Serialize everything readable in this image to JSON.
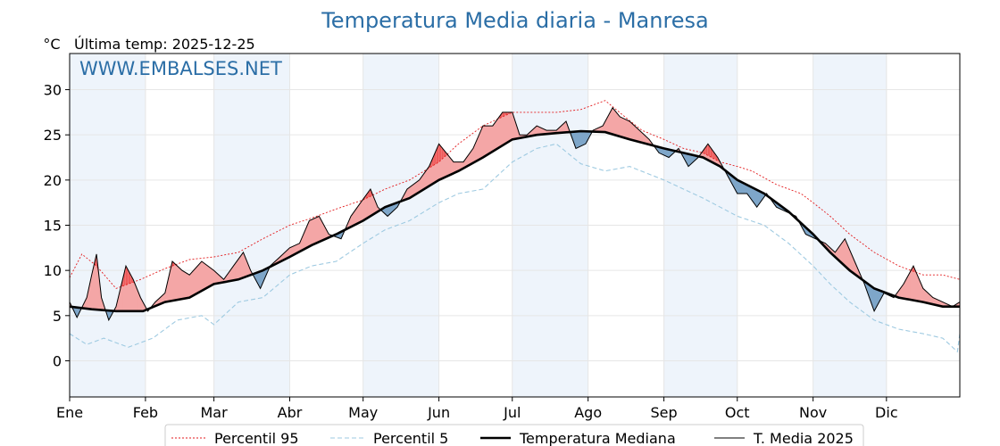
{
  "chart_data": {
    "type": "line",
    "title": "Temperatura Media diaria - Manresa",
    "ylabel": "°C",
    "subtitle": "Última temp: 2025-12-25",
    "watermark": "WWW.EMBALSES.NET",
    "ylim": [
      -4,
      34
    ],
    "xlim_day": [
      1,
      365
    ],
    "grid": true,
    "legend_position": "bottom-center",
    "y_ticks": [
      0,
      5,
      10,
      15,
      20,
      25,
      30
    ],
    "month_ticks": [
      {
        "label": "Ene",
        "day": 1
      },
      {
        "label": "Feb",
        "day": 32
      },
      {
        "label": "Mar",
        "day": 60
      },
      {
        "label": "Abr",
        "day": 91
      },
      {
        "label": "May",
        "day": 121
      },
      {
        "label": "Jun",
        "day": 152
      },
      {
        "label": "Jul",
        "day": 182
      },
      {
        "label": "Ago",
        "day": 213
      },
      {
        "label": "Sep",
        "day": 244
      },
      {
        "label": "Oct",
        "day": 274
      },
      {
        "label": "Nov",
        "day": 305
      },
      {
        "label": "Dic",
        "day": 335
      }
    ],
    "colors": {
      "p95": "#e31a1c",
      "p5": "#9ecae1",
      "median": "#000000",
      "current": "#000000",
      "above": "#f4a6a6",
      "above_extreme": "#ef5b5b",
      "below": "#7ea6c9",
      "below_extreme": "#1f5e99",
      "month_band": "#eef4fb",
      "title": "#2b6ea6"
    },
    "series": [
      {
        "name": "Percentil 95",
        "style": "dotted-red",
        "points": [
          [
            1,
            9.2
          ],
          [
            6,
            11.8
          ],
          [
            12,
            10.5
          ],
          [
            20,
            8.0
          ],
          [
            30,
            9.0
          ],
          [
            40,
            10.2
          ],
          [
            50,
            11.2
          ],
          [
            60,
            11.5
          ],
          [
            70,
            12.0
          ],
          [
            80,
            13.5
          ],
          [
            91,
            15.0
          ],
          [
            100,
            15.8
          ],
          [
            110,
            16.8
          ],
          [
            121,
            17.8
          ],
          [
            130,
            19.0
          ],
          [
            140,
            20.0
          ],
          [
            152,
            22.0
          ],
          [
            160,
            24.0
          ],
          [
            170,
            26.0
          ],
          [
            182,
            27.5
          ],
          [
            192,
            27.5
          ],
          [
            200,
            27.5
          ],
          [
            210,
            27.8
          ],
          [
            220,
            28.8
          ],
          [
            228,
            27.0
          ],
          [
            235,
            25.5
          ],
          [
            244,
            24.5
          ],
          [
            252,
            23.5
          ],
          [
            260,
            23.0
          ],
          [
            267,
            22.0
          ],
          [
            274,
            21.5
          ],
          [
            280,
            21.0
          ],
          [
            290,
            19.5
          ],
          [
            300,
            18.5
          ],
          [
            305,
            17.5
          ],
          [
            312,
            16.0
          ],
          [
            320,
            14.0
          ],
          [
            330,
            12.0
          ],
          [
            340,
            10.5
          ],
          [
            350,
            9.5
          ],
          [
            358,
            9.5
          ],
          [
            365,
            9.0
          ]
        ]
      },
      {
        "name": "Percentil 5",
        "style": "dashed-lightblue",
        "points": [
          [
            1,
            3.0
          ],
          [
            8,
            1.8
          ],
          [
            15,
            2.5
          ],
          [
            25,
            1.5
          ],
          [
            35,
            2.5
          ],
          [
            45,
            4.5
          ],
          [
            55,
            5.0
          ],
          [
            60,
            4.0
          ],
          [
            70,
            6.5
          ],
          [
            80,
            7.0
          ],
          [
            91,
            9.5
          ],
          [
            100,
            10.5
          ],
          [
            110,
            11.0
          ],
          [
            121,
            13.0
          ],
          [
            130,
            14.5
          ],
          [
            140,
            15.5
          ],
          [
            152,
            17.5
          ],
          [
            160,
            18.5
          ],
          [
            170,
            19.0
          ],
          [
            182,
            22.0
          ],
          [
            192,
            23.5
          ],
          [
            200,
            24.0
          ],
          [
            210,
            21.8
          ],
          [
            220,
            21.0
          ],
          [
            230,
            21.5
          ],
          [
            244,
            20.0
          ],
          [
            252,
            19.0
          ],
          [
            260,
            18.0
          ],
          [
            267,
            17.0
          ],
          [
            274,
            16.0
          ],
          [
            285,
            15.0
          ],
          [
            295,
            13.0
          ],
          [
            305,
            10.5
          ],
          [
            312,
            8.5
          ],
          [
            320,
            6.5
          ],
          [
            330,
            4.5
          ],
          [
            340,
            3.5
          ],
          [
            350,
            3.0
          ],
          [
            358,
            2.5
          ],
          [
            364,
            1.0
          ],
          [
            365,
            3.0
          ]
        ]
      },
      {
        "name": "Temperatura Mediana",
        "style": "thick-black",
        "points": [
          [
            1,
            6.0
          ],
          [
            10,
            5.7
          ],
          [
            20,
            5.5
          ],
          [
            31,
            5.5
          ],
          [
            40,
            6.5
          ],
          [
            50,
            7.0
          ],
          [
            60,
            8.5
          ],
          [
            70,
            9.0
          ],
          [
            80,
            10.0
          ],
          [
            91,
            11.5
          ],
          [
            100,
            12.8
          ],
          [
            110,
            14.0
          ],
          [
            121,
            15.5
          ],
          [
            130,
            17.0
          ],
          [
            140,
            18.0
          ],
          [
            152,
            20.0
          ],
          [
            160,
            21.0
          ],
          [
            170,
            22.5
          ],
          [
            182,
            24.5
          ],
          [
            192,
            25.0
          ],
          [
            200,
            25.2
          ],
          [
            210,
            25.4
          ],
          [
            220,
            25.3
          ],
          [
            230,
            24.5
          ],
          [
            244,
            23.5
          ],
          [
            252,
            23.0
          ],
          [
            260,
            22.5
          ],
          [
            267,
            21.5
          ],
          [
            274,
            20.0
          ],
          [
            285,
            18.5
          ],
          [
            295,
            16.5
          ],
          [
            305,
            14.0
          ],
          [
            312,
            12.0
          ],
          [
            320,
            10.0
          ],
          [
            330,
            8.0
          ],
          [
            340,
            7.0
          ],
          [
            350,
            6.5
          ],
          [
            358,
            6.0
          ],
          [
            365,
            6.0
          ]
        ]
      },
      {
        "name": "T. Media 2025",
        "style": "thin-black",
        "points": [
          [
            1,
            6.5
          ],
          [
            4,
            4.8
          ],
          [
            8,
            7.0
          ],
          [
            10,
            9.5
          ],
          [
            12,
            11.8
          ],
          [
            14,
            7.0
          ],
          [
            17,
            4.5
          ],
          [
            20,
            6.0
          ],
          [
            24,
            10.5
          ],
          [
            27,
            9.0
          ],
          [
            30,
            7.0
          ],
          [
            33,
            5.5
          ],
          [
            36,
            6.5
          ],
          [
            40,
            7.5
          ],
          [
            43,
            11.0
          ],
          [
            47,
            10.0
          ],
          [
            50,
            9.5
          ],
          [
            55,
            11.0
          ],
          [
            60,
            10.0
          ],
          [
            64,
            9.0
          ],
          [
            68,
            10.5
          ],
          [
            72,
            12.0
          ],
          [
            75,
            10.0
          ],
          [
            79,
            8.0
          ],
          [
            83,
            10.5
          ],
          [
            87,
            11.5
          ],
          [
            91,
            12.5
          ],
          [
            95,
            13.0
          ],
          [
            99,
            15.5
          ],
          [
            103,
            16.0
          ],
          [
            107,
            14.0
          ],
          [
            112,
            13.5
          ],
          [
            116,
            16.0
          ],
          [
            120,
            17.5
          ],
          [
            124,
            19.0
          ],
          [
            127,
            17.0
          ],
          [
            131,
            16.0
          ],
          [
            135,
            17.0
          ],
          [
            139,
            19.0
          ],
          [
            144,
            20.0
          ],
          [
            148,
            21.5
          ],
          [
            152,
            24.0
          ],
          [
            155,
            23.0
          ],
          [
            158,
            22.0
          ],
          [
            162,
            22.0
          ],
          [
            166,
            23.5
          ],
          [
            170,
            26.0
          ],
          [
            174,
            26.0
          ],
          [
            178,
            27.5
          ],
          [
            182,
            27.5
          ],
          [
            185,
            25.0
          ],
          [
            188,
            25.0
          ],
          [
            192,
            26.0
          ],
          [
            196,
            25.5
          ],
          [
            200,
            25.5
          ],
          [
            204,
            26.5
          ],
          [
            208,
            23.5
          ],
          [
            212,
            24.0
          ],
          [
            215,
            25.5
          ],
          [
            219,
            26.0
          ],
          [
            223,
            28.0
          ],
          [
            226,
            27.0
          ],
          [
            230,
            26.5
          ],
          [
            234,
            25.5
          ],
          [
            238,
            24.5
          ],
          [
            242,
            23.0
          ],
          [
            246,
            22.5
          ],
          [
            250,
            23.5
          ],
          [
            254,
            21.5
          ],
          [
            258,
            22.5
          ],
          [
            262,
            24.0
          ],
          [
            266,
            22.5
          ],
          [
            270,
            20.5
          ],
          [
            274,
            18.5
          ],
          [
            278,
            18.5
          ],
          [
            282,
            17.0
          ],
          [
            286,
            18.5
          ],
          [
            290,
            17.0
          ],
          [
            294,
            16.5
          ],
          [
            298,
            16.0
          ],
          [
            302,
            14.0
          ],
          [
            306,
            13.5
          ],
          [
            310,
            13.0
          ],
          [
            314,
            12.0
          ],
          [
            318,
            13.5
          ],
          [
            322,
            11.0
          ],
          [
            326,
            8.5
          ],
          [
            330,
            5.5
          ],
          [
            334,
            7.5
          ],
          [
            338,
            7.0
          ],
          [
            342,
            8.5
          ],
          [
            346,
            10.5
          ],
          [
            350,
            8.0
          ],
          [
            354,
            7.0
          ],
          [
            358,
            6.5
          ],
          [
            362,
            6.0
          ],
          [
            365,
            6.5
          ]
        ]
      }
    ]
  }
}
